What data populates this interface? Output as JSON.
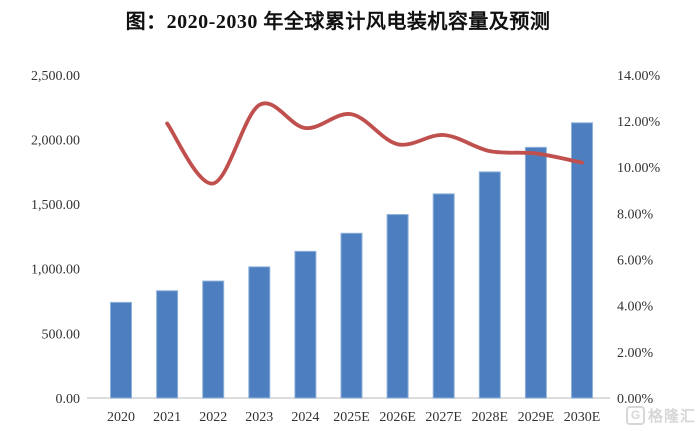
{
  "chart_data": {
    "type": "combo-bar-line",
    "title": "图：2020-2030 年全球累计风电装机容量及预测",
    "categories": [
      "2020",
      "2021",
      "2022",
      "2023",
      "2024",
      "2025E",
      "2026E",
      "2027E",
      "2028E",
      "2029E",
      "2030E"
    ],
    "series": [
      {
        "name": "cumulative-installed-capacity",
        "type": "bar",
        "axis": "left",
        "color": "#4d7ebf",
        "border_color": "#8fb2da",
        "values": [
          740,
          830,
          905,
          1015,
          1135,
          1275,
          1420,
          1580,
          1750,
          1940,
          2130
        ]
      },
      {
        "name": "growth-rate",
        "type": "line",
        "axis": "right",
        "color": "#c0504d",
        "smooth": true,
        "values": [
          null,
          11.9,
          9.3,
          12.7,
          11.7,
          12.3,
          11.0,
          11.4,
          10.7,
          10.6,
          10.2
        ]
      }
    ],
    "left_axis": {
      "min": 0,
      "max": 2500,
      "tick_labels": [
        "0.00",
        "500.00",
        "1,000.00",
        "1,500.00",
        "2,000.00",
        "2,500.00"
      ]
    },
    "right_axis": {
      "min": 0,
      "max": 14,
      "tick_labels": [
        "0.00%",
        "2.00%",
        "4.00%",
        "6.00%",
        "8.00%",
        "10.00%",
        "12.00%",
        "14.00%"
      ]
    },
    "grid": false,
    "legend": "none",
    "axis_line_color": "#d2d2d2"
  },
  "watermark": {
    "logo_letter": "G",
    "text": "格隆汇"
  }
}
